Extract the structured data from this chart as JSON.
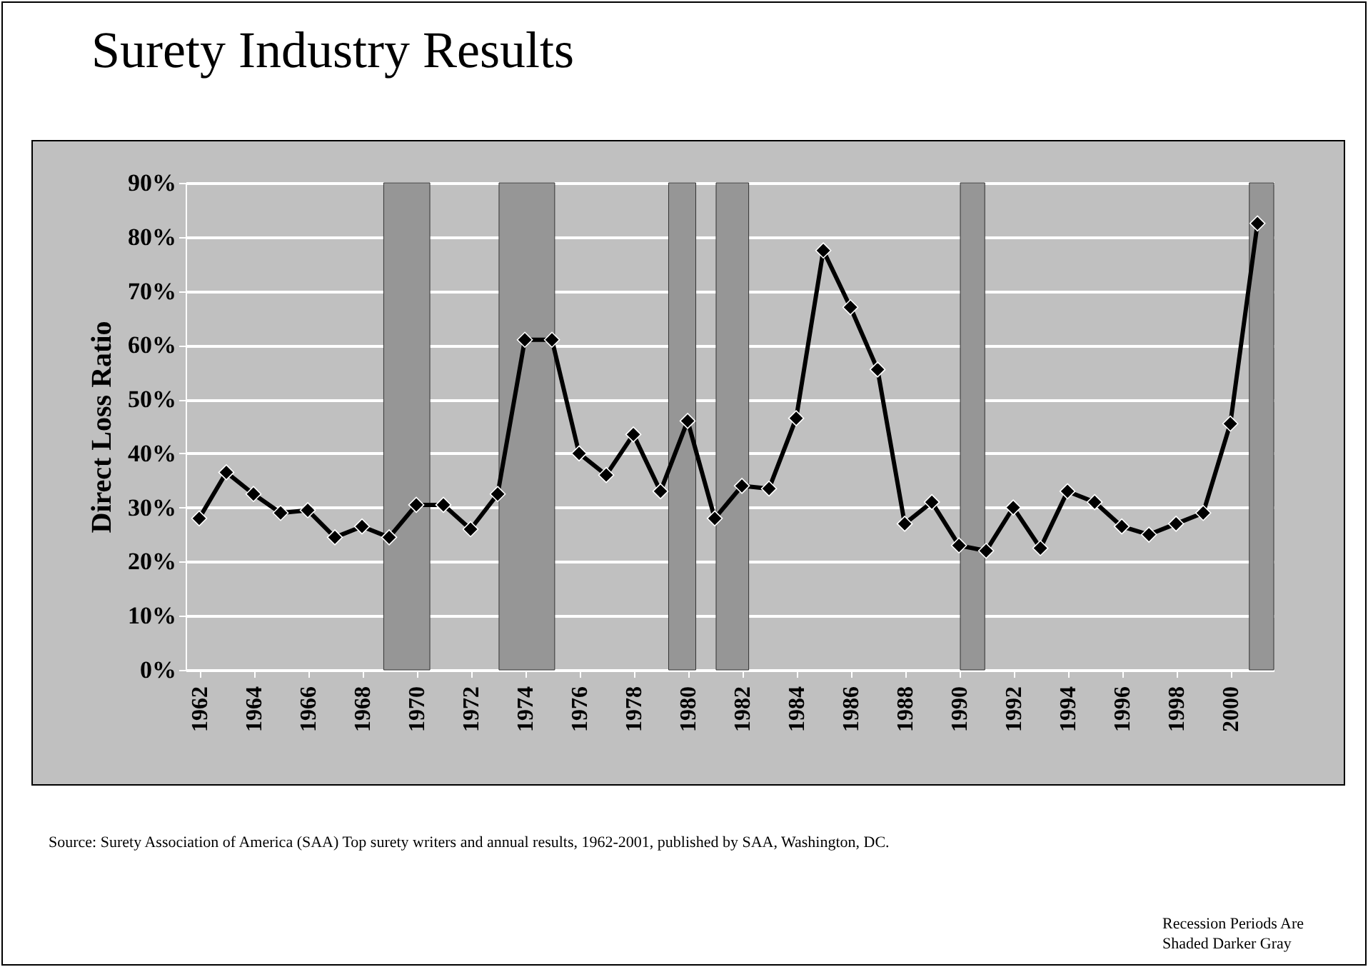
{
  "chart_data": {
    "type": "line",
    "title": "Surety Industry Results",
    "ylabel": "Direct Loss Ratio",
    "x": [
      1962,
      1963,
      1964,
      1965,
      1966,
      1967,
      1968,
      1969,
      1970,
      1971,
      1972,
      1973,
      1974,
      1975,
      1976,
      1977,
      1978,
      1979,
      1980,
      1981,
      1982,
      1983,
      1984,
      1985,
      1986,
      1987,
      1988,
      1989,
      1990,
      1991,
      1992,
      1993,
      1994,
      1995,
      1996,
      1997,
      1998,
      1999,
      2000,
      2001
    ],
    "series": [
      {
        "color": "#000000",
        "values": [
          28,
          36.5,
          32.5,
          29,
          29.5,
          24.5,
          26.5,
          24.5,
          30.5,
          30.5,
          26,
          32.5,
          61,
          61,
          40,
          36,
          43.5,
          33,
          46,
          28,
          34,
          33.5,
          46.5,
          77.5,
          67,
          55.5,
          27,
          31,
          23,
          22,
          30,
          22.5,
          33,
          31,
          26.5,
          25,
          27,
          29,
          45.5,
          82.5
        ]
      }
    ],
    "xlim": [
      1961.5,
      2001.6
    ],
    "xticks": [
      1962,
      1964,
      1966,
      1968,
      1970,
      1972,
      1974,
      1976,
      1978,
      1980,
      1982,
      1984,
      1986,
      1988,
      1990,
      1992,
      1994,
      1996,
      1998,
      2000
    ],
    "ylim": [
      0,
      90
    ],
    "yticks": [
      {
        "value": 0,
        "label": "0%"
      },
      {
        "value": 10,
        "label": "10%"
      },
      {
        "value": 20,
        "label": "20%"
      },
      {
        "value": 30,
        "label": "30%"
      },
      {
        "value": 40,
        "label": "40%"
      },
      {
        "value": 50,
        "label": "50%"
      },
      {
        "value": 60,
        "label": "60%"
      },
      {
        "value": 70,
        "label": "70%"
      },
      {
        "value": 80,
        "label": "80%"
      },
      {
        "value": 90,
        "label": "90%"
      }
    ],
    "bands": [
      {
        "axis": "x",
        "from": 1968.8,
        "to": 1970.5,
        "color": "#969696"
      },
      {
        "axis": "x",
        "from": 1973.05,
        "to": 1975.1,
        "color": "#969696"
      },
      {
        "axis": "x",
        "from": 1979.3,
        "to": 1980.3,
        "color": "#969696"
      },
      {
        "axis": "x",
        "from": 1981.05,
        "to": 1982.25,
        "color": "#969696"
      },
      {
        "axis": "x",
        "from": 1990.05,
        "to": 1990.95,
        "color": "#969696"
      },
      {
        "axis": "x",
        "from": 2000.7,
        "to": 2001.6,
        "color": "#969696"
      }
    ],
    "grid": "y",
    "marker": "diamond",
    "line_style": "solid",
    "annotations": [
      "Source:  Surety Association of America (SAA) Top surety writers and annual results, 1962-2001, published by SAA, Washington, DC.",
      "Recession Periods Are Shaded Darker Gray"
    ]
  }
}
